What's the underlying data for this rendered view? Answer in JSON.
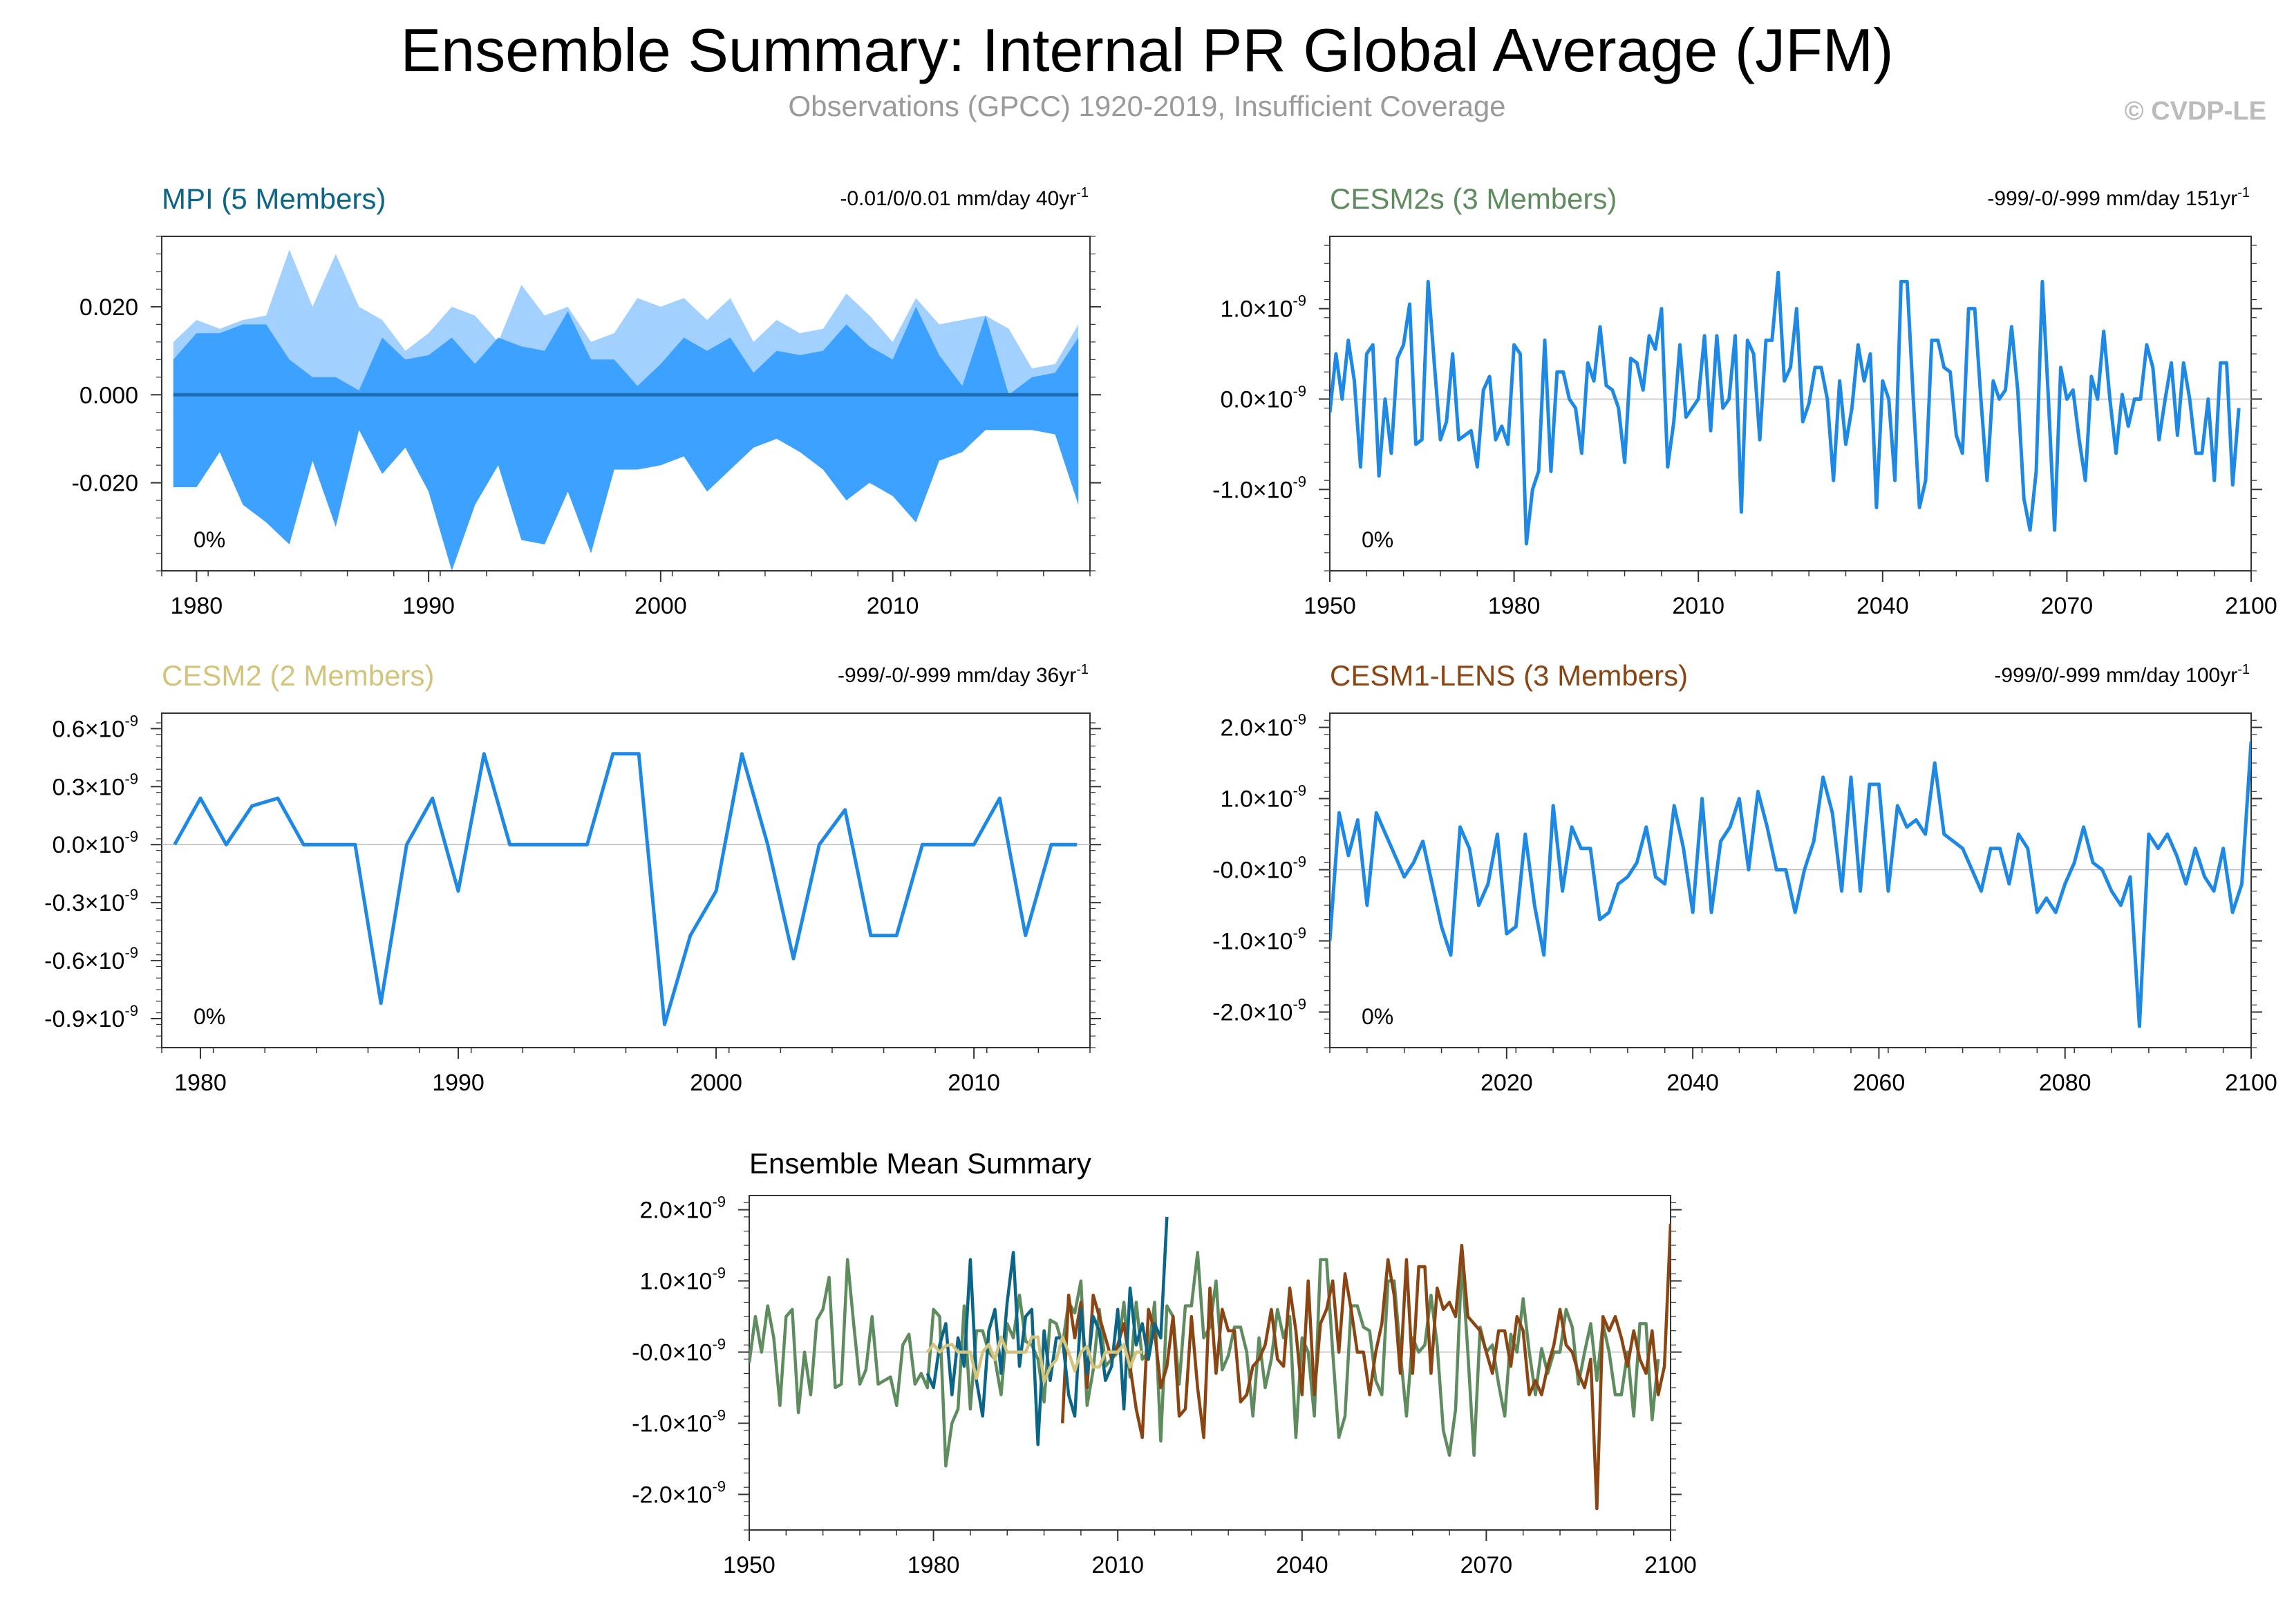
{
  "title": "Ensemble Summary: Internal PR Global Average (JFM)",
  "subtitle": "Observations (GPCC) 1920-2019, Insufficient Coverage",
  "credit": "© CVDP-LE",
  "colors": {
    "mpi": "#0a6587",
    "cesm2s": "#5e8c5e",
    "cesm2": "#d2c47c",
    "cesm1": "#8b4513",
    "line_blue": "#1e88e5",
    "band_outer": "#a3d1ff",
    "band_inner": "#3da1ff",
    "mean_line": "#1f6fb7"
  },
  "chart_data": [
    {
      "id": "mpi",
      "type": "area",
      "title": "MPI (5 Members)",
      "stat": "-0.01/0/0.01 mm/day 40yr",
      "stat_sup": "-1",
      "percent": "0%",
      "x_range": [
        1978.5,
        2018.5
      ],
      "ylim": [
        -0.04,
        0.036
      ],
      "xticks": [
        1980,
        1990,
        2000,
        2010
      ],
      "yticks": [
        {
          "v": 0.02,
          "label": "0.020"
        },
        {
          "v": 0.0,
          "label": "0.000"
        },
        {
          "v": -0.02,
          "label": "-0.020"
        }
      ],
      "x": [
        1979,
        1980,
        1981,
        1982,
        1983,
        1984,
        1985,
        1986,
        1987,
        1988,
        1989,
        1990,
        1991,
        1992,
        1993,
        1994,
        1995,
        1996,
        1997,
        1998,
        1999,
        2000,
        2001,
        2002,
        2003,
        2004,
        2005,
        2006,
        2007,
        2008,
        2009,
        2010,
        2011,
        2012,
        2013,
        2014,
        2015,
        2016,
        2017,
        2018
      ],
      "max": [
        0.012,
        0.017,
        0.015,
        0.017,
        0.018,
        0.033,
        0.02,
        0.032,
        0.02,
        0.017,
        0.01,
        0.014,
        0.02,
        0.018,
        0.012,
        0.025,
        0.018,
        0.02,
        0.012,
        0.014,
        0.022,
        0.02,
        0.022,
        0.017,
        0.022,
        0.012,
        0.017,
        0.014,
        0.015,
        0.023,
        0.018,
        0.012,
        0.022,
        0.016,
        0.017,
        0.018,
        0.015,
        0.006,
        0.007,
        0.016
      ],
      "upper": [
        0.008,
        0.014,
        0.014,
        0.016,
        0.016,
        0.008,
        0.004,
        0.004,
        0.001,
        0.013,
        0.008,
        0.009,
        0.013,
        0.007,
        0.013,
        0.011,
        0.01,
        0.019,
        0.008,
        0.008,
        0.002,
        0.007,
        0.013,
        0.01,
        0.013,
        0.005,
        0.01,
        0.009,
        0.01,
        0.016,
        0.011,
        0.008,
        0.02,
        0.009,
        0.002,
        0.018,
        0.0,
        0.004,
        0.005,
        0.013
      ],
      "lower": [
        -0.021,
        -0.021,
        -0.013,
        -0.025,
        -0.029,
        -0.034,
        -0.015,
        -0.03,
        -0.008,
        -0.018,
        -0.012,
        -0.022,
        -0.04,
        -0.025,
        -0.016,
        -0.033,
        -0.034,
        -0.022,
        -0.036,
        -0.017,
        -0.017,
        -0.016,
        -0.014,
        -0.022,
        -0.017,
        -0.012,
        -0.01,
        -0.013,
        -0.017,
        -0.024,
        -0.02,
        -0.023,
        -0.029,
        -0.015,
        -0.013,
        -0.008,
        -0.008,
        -0.008,
        -0.009,
        -0.025
      ],
      "min": [
        -0.021,
        -0.021,
        -0.013,
        -0.025,
        -0.029,
        -0.034,
        -0.015,
        -0.03,
        -0.008,
        -0.018,
        -0.012,
        -0.022,
        -0.04,
        -0.025,
        -0.016,
        -0.033,
        -0.034,
        -0.022,
        -0.036,
        -0.017,
        -0.017,
        -0.016,
        -0.014,
        -0.022,
        -0.017,
        -0.012,
        -0.01,
        -0.013,
        -0.017,
        -0.024,
        -0.02,
        -0.023,
        -0.029,
        -0.015,
        -0.013,
        -0.008,
        -0.008,
        -0.008,
        -0.009,
        -0.025
      ]
    },
    {
      "id": "cesm2s",
      "type": "line",
      "title": "CESM2s (3 Members)",
      "stat": "-999/-0/-999 mm/day 151yr",
      "stat_sup": "-1",
      "percent": "0%",
      "x_range": [
        1950,
        2100
      ],
      "ylim": [
        -1.9,
        1.8
      ],
      "xticks": [
        1950,
        1980,
        2010,
        2040,
        2070,
        2100
      ],
      "yticks": [
        {
          "v": 1.0,
          "label": "1.0",
          "suffix": "×10",
          "sup": "-9"
        },
        {
          "v": 0.0,
          "label": "0.0",
          "suffix": "×10",
          "sup": "-9"
        },
        {
          "v": -1.0,
          "label": "-1.0",
          "suffix": "×10",
          "sup": "-9"
        }
      ],
      "x_start": 1950,
      "y": [
        -0.15,
        0.5,
        0.0,
        0.65,
        0.2,
        -0.75,
        0.5,
        0.6,
        -0.85,
        0.0,
        -0.6,
        0.45,
        0.6,
        1.05,
        -0.5,
        -0.45,
        1.3,
        0.4,
        -0.45,
        -0.25,
        0.5,
        -0.45,
        -0.4,
        -0.35,
        -0.75,
        0.1,
        0.25,
        -0.45,
        -0.3,
        -0.5,
        0.6,
        0.5,
        -1.6,
        -1.0,
        -0.8,
        0.65,
        -0.8,
        0.3,
        0.3,
        0.0,
        -0.1,
        -0.6,
        0.4,
        0.2,
        0.8,
        0.15,
        0.1,
        -0.1,
        -0.7,
        0.45,
        0.4,
        0.1,
        0.7,
        0.55,
        1.0,
        -0.75,
        -0.25,
        0.6,
        -0.2,
        -0.1,
        0.0,
        0.7,
        -0.35,
        0.7,
        -0.1,
        0.0,
        0.7,
        -1.25,
        0.65,
        0.5,
        -0.45,
        0.65,
        0.65,
        1.4,
        0.2,
        0.35,
        1.0,
        -0.25,
        -0.05,
        0.35,
        0.35,
        0.0,
        -0.9,
        0.2,
        -0.5,
        -0.1,
        0.6,
        0.2,
        0.5,
        -1.2,
        0.2,
        0.0,
        -0.9,
        1.3,
        1.3,
        0.0,
        -1.2,
        -0.9,
        0.65,
        0.65,
        0.35,
        0.3,
        -0.4,
        -0.6,
        1.0,
        1.0,
        0.0,
        -0.9,
        0.2,
        0.0,
        0.1,
        0.8,
        0.1,
        -1.1,
        -1.45,
        -0.8,
        1.3,
        0.0,
        -1.45,
        0.35,
        0.0,
        0.1,
        -0.45,
        -0.9,
        0.25,
        0.0,
        0.75,
        0.0,
        -0.6,
        0.05,
        -0.3,
        0.0,
        0.0,
        0.6,
        0.35,
        -0.45,
        0.0,
        0.4,
        -0.4,
        0.4,
        0.0,
        -0.6,
        -0.6,
        0.0,
        -0.9,
        0.4,
        0.4,
        -0.95,
        -0.1
      ],
      "_note": "CESM2s values span 1950-2100"
    },
    {
      "id": "cesm2",
      "type": "line",
      "title": "CESM2 (2 Members)",
      "stat": "-999/-0/-999 mm/day 36yr",
      "stat_sup": "-1",
      "percent": "0%",
      "x_range": [
        1978.5,
        2014.5
      ],
      "ylim": [
        -1.05,
        0.68
      ],
      "xticks": [
        1980,
        1990,
        2000,
        2010
      ],
      "yticks": [
        {
          "v": 0.6,
          "label": "0.6",
          "suffix": "×10",
          "sup": "-9"
        },
        {
          "v": 0.3,
          "label": "0.3",
          "suffix": "×10",
          "sup": "-9"
        },
        {
          "v": 0.0,
          "label": "0.0",
          "suffix": "×10",
          "sup": "-9"
        },
        {
          "v": -0.3,
          "label": "-0.3",
          "suffix": "×10",
          "sup": "-9"
        },
        {
          "v": -0.6,
          "label": "-0.6",
          "suffix": "×10",
          "sup": "-9"
        },
        {
          "v": -0.9,
          "label": "-0.9",
          "suffix": "×10",
          "sup": "-9"
        }
      ],
      "x_start": 1979,
      "y": [
        0.0,
        0.24,
        0.0,
        0.2,
        0.24,
        0.0,
        0.0,
        0.0,
        -0.82,
        0.0,
        0.24,
        -0.24,
        0.47,
        0.0,
        0.0,
        0.0,
        0.0,
        0.47,
        0.47,
        -0.93,
        -0.47,
        -0.24,
        0.47,
        0.0,
        -0.59,
        0.0,
        0.18,
        -0.47,
        -0.47,
        0.0,
        0.0,
        0.0,
        0.24,
        -0.47,
        0.0,
        0.0
      ]
    },
    {
      "id": "cesm1",
      "type": "line",
      "title": "CESM1-LENS (3 Members)",
      "stat": "-999/0/-999 mm/day 100yr",
      "stat_sup": "-1",
      "percent": "0%",
      "x_range": [
        2001,
        2100
      ],
      "ylim": [
        -2.5,
        2.2
      ],
      "xticks": [
        2020,
        2040,
        2060,
        2080,
        2100
      ],
      "yticks": [
        {
          "v": 2.0,
          "label": "2.0",
          "suffix": "×10",
          "sup": "-9"
        },
        {
          "v": 1.0,
          "label": "1.0",
          "suffix": "×10",
          "sup": "-9"
        },
        {
          "v": 0.0,
          "label": "-0.0",
          "suffix": "×10",
          "sup": "-9"
        },
        {
          "v": -1.0,
          "label": "-1.0",
          "suffix": "×10",
          "sup": "-9"
        },
        {
          "v": -2.0,
          "label": "-2.0",
          "suffix": "×10",
          "sup": "-9"
        }
      ],
      "x_start": 2001,
      "y": [
        -1.0,
        0.8,
        0.2,
        0.7,
        -0.5,
        0.8,
        0.5,
        0.2,
        -0.1,
        0.1,
        0.4,
        -0.2,
        -0.8,
        -1.2,
        0.6,
        0.3,
        -0.5,
        -0.2,
        0.5,
        -0.9,
        -0.8,
        0.5,
        -0.5,
        -1.2,
        0.9,
        -0.3,
        0.6,
        0.3,
        0.3,
        -0.7,
        -0.6,
        -0.2,
        -0.1,
        0.1,
        0.6,
        -0.1,
        -0.2,
        0.9,
        0.3,
        -0.6,
        1.0,
        -0.6,
        0.4,
        0.6,
        1.0,
        0.0,
        1.1,
        0.6,
        0.0,
        0.0,
        -0.6,
        0.0,
        0.4,
        1.3,
        0.8,
        -0.3,
        1.3,
        -0.3,
        1.2,
        1.2,
        -0.3,
        0.9,
        0.6,
        0.7,
        0.5,
        1.5,
        0.5,
        0.4,
        0.3,
        0.0,
        -0.3,
        0.3,
        0.3,
        -0.2,
        0.5,
        0.3,
        -0.6,
        -0.4,
        -0.6,
        -0.2,
        0.1,
        0.6,
        0.1,
        0.0,
        -0.3,
        -0.5,
        -0.1,
        -2.2,
        0.5,
        0.3,
        0.5,
        0.2,
        -0.2,
        0.3,
        -0.1,
        -0.3,
        0.3,
        -0.6,
        -0.2,
        1.8
      ]
    },
    {
      "id": "mean",
      "type": "line",
      "title": "Ensemble Mean Summary",
      "x_range": [
        1950,
        2100
      ],
      "ylim": [
        -2.5,
        2.2
      ],
      "xticks": [
        1950,
        1980,
        2010,
        2040,
        2070,
        2100
      ],
      "yticks": [
        {
          "v": 2.0,
          "label": "2.0",
          "suffix": "×10",
          "sup": "-9"
        },
        {
          "v": 1.0,
          "label": "1.0",
          "suffix": "×10",
          "sup": "-9"
        },
        {
          "v": 0.0,
          "label": "-0.0",
          "suffix": "×10",
          "sup": "-9"
        },
        {
          "v": -1.0,
          "label": "-1.0",
          "suffix": "×10",
          "sup": "-9"
        },
        {
          "v": -2.0,
          "label": "-2.0",
          "suffix": "×10",
          "sup": "-9"
        }
      ],
      "series": [
        {
          "name": "CESM2s",
          "color_key": "cesm2s",
          "source": "cesm2s",
          "scale": 1.0
        },
        {
          "name": "CESM1-LENS",
          "color_key": "cesm1",
          "source": "cesm1",
          "scale": 1.0
        },
        {
          "name": "MPI",
          "color_key": "mpi",
          "x_start": 1979,
          "y": [
            -0.3,
            -0.5,
            0.1,
            0.4,
            -0.6,
            0.2,
            -0.2,
            1.3,
            -0.4,
            -0.9,
            0.3,
            0.6,
            -0.3,
            0.7,
            1.4,
            -0.2,
            0.5,
            0.6,
            -1.3,
            0.3,
            -0.4,
            0.2,
            0.2,
            -0.6,
            -0.9,
            0.6,
            -0.3,
            0.5,
            0.3,
            -0.4,
            -0.2,
            0.6,
            -0.8,
            0.9,
            0.1,
            0.4,
            -0.1,
            0.4,
            0.2,
            1.9
          ]
        },
        {
          "name": "CESM2",
          "color_key": "cesm2",
          "source": "cesm2",
          "scale": 0.45
        }
      ]
    }
  ]
}
